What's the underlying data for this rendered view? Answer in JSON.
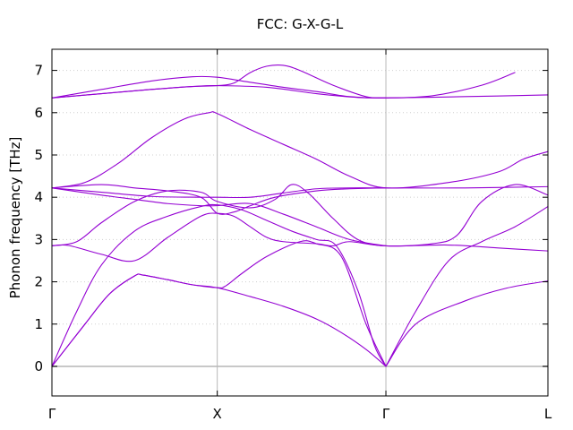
{
  "chart_data": {
    "type": "line",
    "title": "FCC: G-X-G-L",
    "ylabel": "Phonon frequency [THz]",
    "ylim": [
      -0.7,
      7.5
    ],
    "xticks": [
      {
        "label": "Γ",
        "value": 0
      },
      {
        "label": "X",
        "value": 1
      },
      {
        "label": "Γ",
        "value": 2.02
      },
      {
        "label": "L",
        "value": 3.0
      }
    ],
    "yticks": [
      0,
      1,
      2,
      3,
      4,
      5,
      6,
      7
    ],
    "grid": true,
    "series_color": "#9400d3",
    "series": [
      {
        "points": [
          [
            0,
            0
          ],
          [
            0.2,
            1.0
          ],
          [
            0.35,
            1.72
          ],
          [
            0.5,
            2.14
          ],
          [
            0.55,
            2.16
          ],
          [
            0.7,
            2.05
          ],
          [
            0.85,
            1.93
          ],
          [
            1.0,
            1.86
          ],
          [
            1.2,
            1.65
          ],
          [
            1.4,
            1.42
          ],
          [
            1.6,
            1.12
          ],
          [
            1.75,
            0.8
          ],
          [
            1.9,
            0.4
          ],
          [
            2.02,
            0
          ]
        ]
      },
      {
        "points": [
          [
            0,
            0
          ],
          [
            0.2,
            1.0
          ],
          [
            0.35,
            1.72
          ],
          [
            0.5,
            2.14
          ],
          [
            0.55,
            2.16
          ],
          [
            0.7,
            2.05
          ],
          [
            0.85,
            1.93
          ],
          [
            1.0,
            1.86
          ],
          [
            1.05,
            1.9
          ],
          [
            1.15,
            2.2
          ],
          [
            1.3,
            2.6
          ],
          [
            1.5,
            2.95
          ],
          [
            1.6,
            2.9
          ],
          [
            1.75,
            2.6
          ],
          [
            1.9,
            1.0
          ],
          [
            2.02,
            0
          ]
        ]
      },
      {
        "points": [
          [
            0,
            0
          ],
          [
            0.15,
            1.3
          ],
          [
            0.3,
            2.4
          ],
          [
            0.5,
            3.2
          ],
          [
            0.7,
            3.55
          ],
          [
            0.9,
            3.78
          ],
          [
            1.0,
            3.82
          ],
          [
            1.15,
            3.7
          ],
          [
            1.3,
            3.45
          ],
          [
            1.45,
            3.2
          ],
          [
            1.6,
            3.0
          ],
          [
            1.72,
            2.85
          ],
          [
            1.85,
            1.8
          ],
          [
            1.95,
            0.5
          ],
          [
            2.02,
            0
          ]
        ]
      },
      {
        "points": [
          [
            2.02,
            0
          ],
          [
            2.2,
            1.0
          ],
          [
            2.5,
            1.55
          ],
          [
            2.75,
            1.85
          ],
          [
            3.0,
            2.02
          ]
        ]
      },
      {
        "points": [
          [
            2.02,
            0
          ],
          [
            2.2,
            1.3
          ],
          [
            2.4,
            2.5
          ],
          [
            2.6,
            2.95
          ],
          [
            2.8,
            3.3
          ],
          [
            3.0,
            3.78
          ]
        ]
      },
      {
        "points": [
          [
            0,
            2.85
          ],
          [
            0.1,
            2.86
          ],
          [
            0.3,
            2.65
          ],
          [
            0.5,
            2.5
          ],
          [
            0.7,
            3.05
          ],
          [
            0.9,
            3.55
          ],
          [
            1.0,
            3.62
          ],
          [
            1.1,
            3.55
          ],
          [
            1.2,
            3.3
          ],
          [
            1.3,
            3.05
          ],
          [
            1.4,
            2.95
          ],
          [
            1.6,
            2.9
          ],
          [
            1.7,
            2.85
          ],
          [
            1.8,
            2.95
          ],
          [
            2.02,
            2.85
          ],
          [
            2.4,
            2.87
          ],
          [
            2.7,
            2.8
          ],
          [
            3.0,
            2.73
          ]
        ]
      },
      {
        "points": [
          [
            0,
            2.85
          ],
          [
            0.15,
            2.95
          ],
          [
            0.3,
            3.4
          ],
          [
            0.5,
            3.9
          ],
          [
            0.7,
            4.15
          ],
          [
            0.9,
            4.12
          ],
          [
            1.0,
            3.9
          ],
          [
            1.2,
            3.75
          ],
          [
            1.35,
            3.95
          ],
          [
            1.45,
            4.3
          ],
          [
            1.55,
            4.1
          ],
          [
            1.7,
            3.5
          ],
          [
            1.85,
            3.0
          ],
          [
            2.02,
            2.85
          ],
          [
            2.3,
            2.9
          ],
          [
            2.45,
            3.1
          ],
          [
            2.6,
            3.9
          ],
          [
            2.8,
            4.3
          ],
          [
            3.0,
            4.05
          ]
        ]
      },
      {
        "points": [
          [
            0,
            4.22
          ],
          [
            0.3,
            4.05
          ],
          [
            0.5,
            3.95
          ],
          [
            0.7,
            3.85
          ],
          [
            0.9,
            3.8
          ],
          [
            1.0,
            3.8
          ],
          [
            1.2,
            3.85
          ],
          [
            1.4,
            3.6
          ],
          [
            1.6,
            3.3
          ],
          [
            1.8,
            3.0
          ],
          [
            2.02,
            2.85
          ]
        ]
      },
      {
        "points": [
          [
            0,
            4.22
          ],
          [
            0.3,
            4.3
          ],
          [
            0.5,
            4.22
          ],
          [
            0.7,
            4.15
          ],
          [
            0.9,
            4.0
          ],
          [
            1.0,
            3.62
          ],
          [
            1.1,
            3.65
          ],
          [
            1.2,
            3.8
          ],
          [
            1.35,
            4.0
          ],
          [
            1.6,
            4.15
          ],
          [
            1.8,
            4.2
          ],
          [
            2.02,
            4.22
          ],
          [
            2.5,
            4.22
          ],
          [
            3.0,
            4.25
          ]
        ]
      },
      {
        "points": [
          [
            0,
            4.22
          ],
          [
            0.2,
            4.35
          ],
          [
            0.4,
            4.8
          ],
          [
            0.6,
            5.4
          ],
          [
            0.8,
            5.85
          ],
          [
            0.95,
            6.0
          ],
          [
            1.0,
            5.98
          ],
          [
            1.2,
            5.6
          ],
          [
            1.4,
            5.25
          ],
          [
            1.6,
            4.9
          ],
          [
            1.8,
            4.5
          ],
          [
            2.02,
            4.22
          ],
          [
            2.4,
            4.35
          ],
          [
            2.7,
            4.6
          ],
          [
            2.85,
            4.9
          ],
          [
            3.0,
            5.08
          ]
        ]
      },
      {
        "points": [
          [
            0,
            4.22
          ],
          [
            0.3,
            4.12
          ],
          [
            0.6,
            4.02
          ],
          [
            0.9,
            4.0
          ],
          [
            1.0,
            4.0
          ],
          [
            1.2,
            4.0
          ],
          [
            1.4,
            4.1
          ],
          [
            1.6,
            4.2
          ],
          [
            1.8,
            4.22
          ],
          [
            2.02,
            4.22
          ]
        ]
      },
      {
        "points": [
          [
            0,
            6.35
          ],
          [
            0.3,
            6.55
          ],
          [
            0.6,
            6.75
          ],
          [
            0.85,
            6.85
          ],
          [
            1.0,
            6.84
          ],
          [
            1.15,
            6.75
          ],
          [
            1.4,
            6.6
          ],
          [
            1.6,
            6.5
          ],
          [
            1.8,
            6.38
          ],
          [
            2.02,
            6.35
          ],
          [
            2.3,
            6.4
          ],
          [
            2.6,
            6.65
          ],
          [
            2.8,
            6.95
          ]
        ]
      },
      {
        "points": [
          [
            0,
            6.35
          ],
          [
            0.3,
            6.45
          ],
          [
            0.6,
            6.55
          ],
          [
            0.85,
            6.62
          ],
          [
            1.0,
            6.64
          ],
          [
            1.1,
            6.7
          ],
          [
            1.2,
            6.95
          ],
          [
            1.3,
            7.1
          ],
          [
            1.4,
            7.12
          ],
          [
            1.5,
            7.0
          ],
          [
            1.7,
            6.65
          ],
          [
            1.9,
            6.38
          ],
          [
            2.02,
            6.35
          ]
        ]
      },
      {
        "points": [
          [
            0,
            6.35
          ],
          [
            0.3,
            6.45
          ],
          [
            0.6,
            6.55
          ],
          [
            0.85,
            6.62
          ],
          [
            1.0,
            6.64
          ],
          [
            1.3,
            6.6
          ],
          [
            1.6,
            6.45
          ],
          [
            1.85,
            6.36
          ],
          [
            2.02,
            6.35
          ],
          [
            2.5,
            6.38
          ],
          [
            3.0,
            6.42
          ]
        ]
      }
    ]
  }
}
